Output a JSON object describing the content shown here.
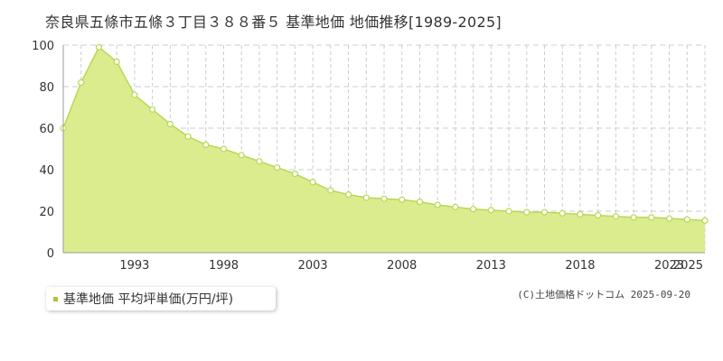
{
  "title": "奈良県五條市五條３丁目３８８番５ 基準地価 地価推移[1989-2025]",
  "legend_label": "基準地価 平均坪単価(万円/坪)",
  "credit": "(C)土地価格ドットコム 2025-09-20",
  "colors": {
    "fill": "#dbec8f",
    "line": "#b8d852",
    "marker_fill": "#ffffff",
    "marker_stroke": "#b8d852",
    "grid": "#cccccc",
    "legend_marker": "#a5c83c"
  },
  "chart_data": {
    "type": "area",
    "x": [
      1989,
      1990,
      1991,
      1992,
      1993,
      1994,
      1995,
      1996,
      1997,
      1998,
      1999,
      2000,
      2001,
      2002,
      2003,
      2004,
      2005,
      2006,
      2007,
      2008,
      2009,
      2010,
      2011,
      2012,
      2013,
      2014,
      2015,
      2016,
      2017,
      2018,
      2019,
      2020,
      2021,
      2022,
      2023,
      2024,
      2025
    ],
    "series": [
      {
        "name": "基準地価 平均坪単価(万円/坪)",
        "values": [
          60,
          82,
          99,
          92,
          76,
          69,
          62,
          56,
          52,
          50,
          47,
          44,
          41,
          38,
          34,
          30,
          28,
          26.5,
          26,
          25.5,
          24.5,
          23,
          22,
          21,
          20.5,
          20,
          19.5,
          19.5,
          19,
          18.5,
          18,
          17.5,
          17,
          17,
          16.5,
          16,
          15.5
        ]
      }
    ],
    "x_ticks": [
      "1993",
      "1998",
      "2003",
      "2008",
      "2013",
      "2018",
      "2023",
      "2025"
    ],
    "x_tick_values": [
      1993,
      1998,
      2003,
      2008,
      2013,
      2018,
      2023,
      2025
    ],
    "y_ticks": [
      "0",
      "20",
      "40",
      "60",
      "80",
      "100"
    ],
    "y_tick_values": [
      0,
      20,
      40,
      60,
      80,
      100
    ],
    "ylim": [
      0,
      100
    ],
    "xlim": [
      1989,
      2025
    ],
    "grid": true,
    "legend": "bottom-left"
  }
}
